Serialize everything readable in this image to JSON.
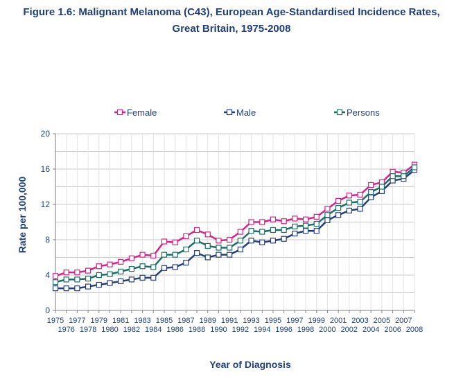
{
  "chart_data": {
    "type": "line",
    "title_line1": "Figure 1.6: Malignant Melanoma (C43), European Age-Standardised Incidence Rates,",
    "title_line2": "Great Britain, 1975-2008",
    "xlabel": "Year of Diagnosis",
    "ylabel": "Rate per 100,000",
    "ylim": [
      0,
      20
    ],
    "yticks": [
      0,
      4,
      8,
      12,
      16,
      20
    ],
    "grid": true,
    "legend_position": "top",
    "x": [
      1975,
      1976,
      1977,
      1978,
      1979,
      1980,
      1981,
      1982,
      1983,
      1984,
      1985,
      1986,
      1987,
      1988,
      1989,
      1990,
      1991,
      1992,
      1993,
      1994,
      1995,
      1996,
      1997,
      1998,
      1999,
      2000,
      2001,
      2002,
      2003,
      2004,
      2005,
      2006,
      2007,
      2008
    ],
    "series": [
      {
        "name": "Female",
        "color": "#d6208a",
        "values": [
          3.9,
          4.3,
          4.3,
          4.5,
          5.0,
          5.2,
          5.5,
          5.9,
          6.3,
          6.2,
          7.8,
          7.7,
          8.4,
          9.1,
          8.6,
          7.9,
          8.0,
          8.9,
          10.0,
          10.0,
          10.3,
          10.1,
          10.4,
          10.3,
          10.6,
          11.5,
          12.4,
          13.0,
          13.1,
          14.2,
          14.5,
          15.7,
          15.6,
          16.5
        ]
      },
      {
        "name": "Male",
        "color": "#233d7d",
        "values": [
          2.5,
          2.5,
          2.5,
          2.7,
          2.9,
          3.1,
          3.3,
          3.5,
          3.7,
          3.7,
          4.8,
          4.9,
          5.4,
          6.5,
          6.0,
          6.3,
          6.3,
          6.9,
          7.9,
          7.7,
          7.9,
          8.1,
          8.7,
          9.0,
          9.0,
          10.2,
          10.8,
          11.3,
          11.5,
          12.8,
          13.5,
          14.7,
          14.9,
          15.9
        ]
      },
      {
        "name": "Persons",
        "color": "#1b6d65",
        "values": [
          3.2,
          3.5,
          3.5,
          3.6,
          4.0,
          4.1,
          4.4,
          4.7,
          5.0,
          4.9,
          6.3,
          6.3,
          6.9,
          7.9,
          7.3,
          7.1,
          7.1,
          7.9,
          9.0,
          8.9,
          9.1,
          9.1,
          9.5,
          9.6,
          9.8,
          10.8,
          11.6,
          12.2,
          12.3,
          13.4,
          14.0,
          15.2,
          15.2,
          16.2
        ]
      }
    ]
  }
}
